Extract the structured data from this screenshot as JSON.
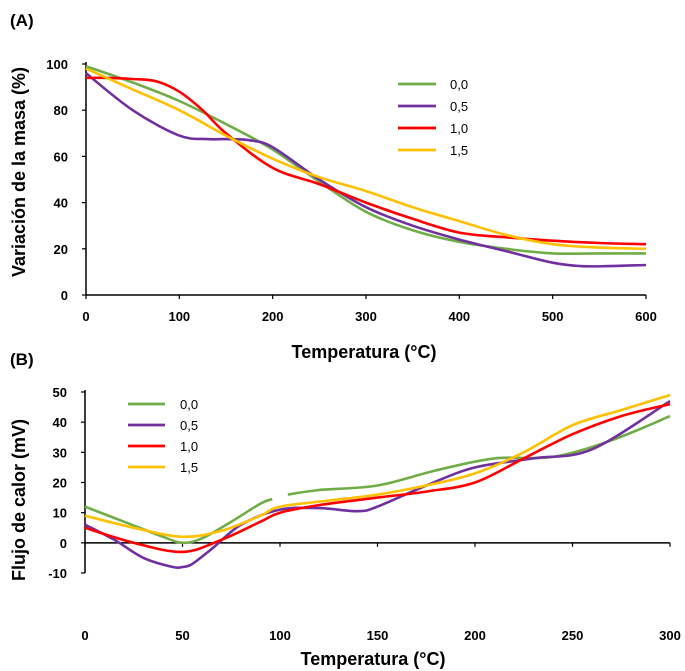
{
  "chart_data": [
    {
      "type": "line",
      "panel_label": "(A)",
      "xlabel": "Temperatura (°C)",
      "ylabel": "Variación de la masa (%)",
      "xlim": [
        0,
        600
      ],
      "ylim": [
        0,
        100
      ],
      "xticks": [
        "0",
        "100",
        "200",
        "300",
        "400",
        "500",
        "600"
      ],
      "yticks": [
        "0",
        "20",
        "40",
        "60",
        "80",
        "100"
      ],
      "legend_position": "top-right",
      "series": [
        {
          "name": "0,0",
          "color": "#70ad47",
          "x": [
            0,
            50,
            100,
            150,
            200,
            250,
            300,
            350,
            400,
            450,
            500,
            550,
            600
          ],
          "y": [
            99,
            92,
            84,
            74,
            63,
            49,
            36,
            28,
            23,
            20,
            18,
            18,
            18
          ]
        },
        {
          "name": "0,5",
          "color": "#7030a0",
          "x": [
            0,
            50,
            100,
            130,
            150,
            175,
            200,
            250,
            300,
            350,
            400,
            450,
            500,
            530,
            560,
            600
          ],
          "y": [
            96,
            80,
            69,
            67.5,
            67.5,
            67,
            64,
            50,
            38,
            30,
            24,
            19,
            14,
            12.5,
            12.5,
            13
          ]
        },
        {
          "name": "1,0",
          "color": "#ff0000",
          "x": [
            0,
            25,
            50,
            75,
            100,
            125,
            150,
            200,
            250,
            300,
            350,
            400,
            450,
            500,
            550,
            600
          ],
          "y": [
            94,
            94,
            93.5,
            92.5,
            88,
            80,
            70,
            55,
            48,
            40,
            33,
            27,
            25,
            23.5,
            22.5,
            22
          ]
        },
        {
          "name": "1,5",
          "color": "#ffc000",
          "x": [
            0,
            50,
            100,
            150,
            200,
            250,
            300,
            350,
            400,
            450,
            500,
            550,
            600
          ],
          "y": [
            98,
            89,
            80,
            69,
            59,
            51,
            45,
            38,
            32,
            26,
            22,
            20.5,
            20
          ]
        }
      ]
    },
    {
      "type": "line",
      "panel_label": "(B)",
      "xlabel": "Temperatura (°C)",
      "ylabel": "Flujo de calor (mV)",
      "xlim": [
        0,
        300
      ],
      "ylim": [
        -10,
        50
      ],
      "xticks": [
        "0",
        "50",
        "100",
        "150",
        "200",
        "250",
        "300"
      ],
      "yticks": [
        "-10",
        "0",
        "10",
        "20",
        "30",
        "40",
        "50"
      ],
      "legend_position": "top-left",
      "series": [
        {
          "name": "0,0",
          "color": "#70ad47",
          "segments": [
            {
              "x": [
                0,
                20,
                40,
                50,
                60,
                75,
                90,
                96
              ],
              "y": [
                12,
                7,
                2,
                0,
                1.5,
                7,
                13,
                14.5
              ]
            },
            {
              "x": [
                104,
                120,
                150,
                180,
                210,
                240,
                270,
                300
              ],
              "y": [
                16,
                17.5,
                19,
                24,
                28,
                28.5,
                34,
                42
              ]
            }
          ]
        },
        {
          "name": "0,5",
          "color": "#7030a0",
          "x": [
            0,
            15,
            30,
            45,
            50,
            55,
            65,
            80,
            100,
            120,
            140,
            150,
            175,
            200,
            230,
            260,
            300
          ],
          "y": [
            6,
            1,
            -5,
            -8,
            -8,
            -7,
            -2,
            6,
            11,
            11.5,
            10.5,
            12,
            19,
            25,
            28,
            31,
            47
          ]
        },
        {
          "name": "1,0",
          "color": "#ff0000",
          "x": [
            0,
            25,
            50,
            70,
            90,
            100,
            120,
            150,
            175,
            200,
            225,
            250,
            275,
            300
          ],
          "y": [
            5,
            0,
            -3,
            1,
            7,
            10,
            12.5,
            15,
            17,
            20,
            28,
            36,
            42,
            46
          ]
        },
        {
          "name": "1,5",
          "color": "#ffc000",
          "x": [
            0,
            25,
            50,
            70,
            90,
            100,
            125,
            150,
            175,
            200,
            225,
            250,
            275,
            300
          ],
          "y": [
            9,
            5,
            2,
            4,
            9,
            12,
            14,
            16,
            19,
            23,
            30,
            39,
            44,
            49
          ]
        }
      ]
    }
  ]
}
